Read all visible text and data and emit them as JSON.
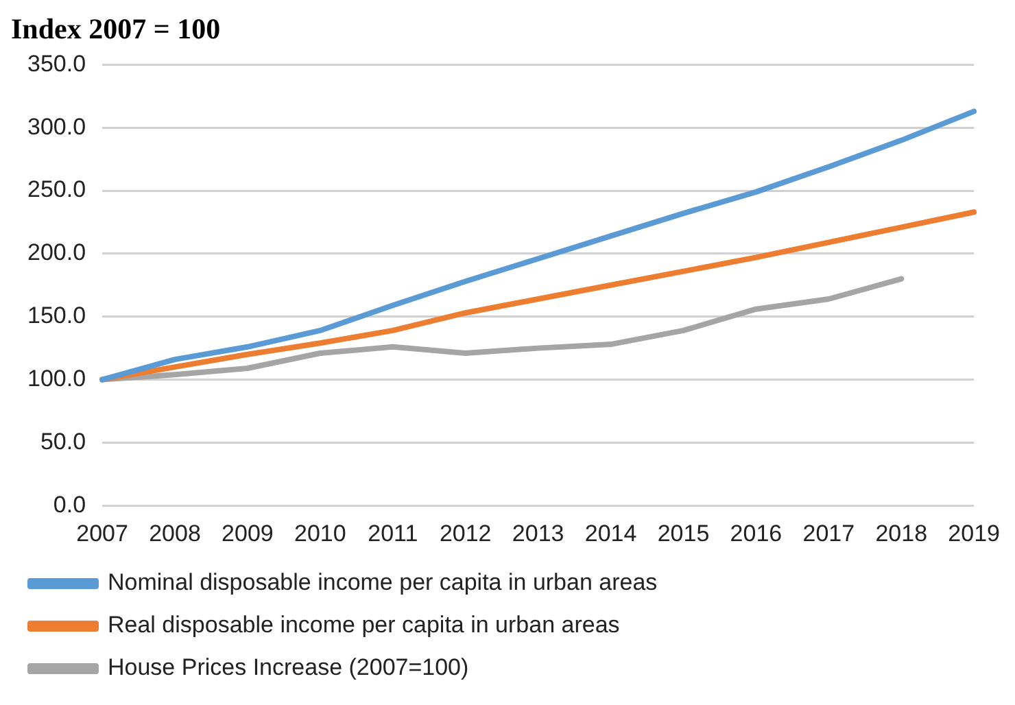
{
  "chart_data": {
    "type": "line",
    "title": "Index 2007 = 100",
    "categories": [
      "2007",
      "2008",
      "2009",
      "2010",
      "2011",
      "2012",
      "2013",
      "2014",
      "2015",
      "2016",
      "2017",
      "2018",
      "2019"
    ],
    "series": [
      {
        "name": "Nominal disposable income per capita in urban areas",
        "color": "#5b9bd5",
        "values": [
          100,
          116,
          126,
          139,
          159,
          178,
          196,
          214,
          232,
          249,
          269,
          290,
          313
        ]
      },
      {
        "name": "Real disposable income per capita in urban areas",
        "color": "#ed7d31",
        "values": [
          100,
          110,
          120,
          129,
          139,
          153,
          164,
          175,
          186,
          197,
          209,
          221,
          233
        ]
      },
      {
        "name": "House Prices Increase (2007=100)",
        "color": "#a5a5a5",
        "values": [
          100,
          104,
          109,
          121,
          126,
          121,
          125,
          128,
          139,
          156,
          164,
          180,
          null
        ]
      }
    ],
    "ylim": [
      0,
      350
    ],
    "yticks": [
      {
        "value": 0,
        "label": "0.0"
      },
      {
        "value": 50,
        "label": "50.0"
      },
      {
        "value": 100,
        "label": "100.0"
      },
      {
        "value": 150,
        "label": "150.0"
      },
      {
        "value": 200,
        "label": "200.0"
      },
      {
        "value": 250,
        "label": "250.0"
      },
      {
        "value": 300,
        "label": "300.0"
      },
      {
        "value": 350,
        "label": "350.0"
      }
    ],
    "grid": "y",
    "legend": "bottom",
    "marker": "none",
    "line_style": "solid"
  }
}
